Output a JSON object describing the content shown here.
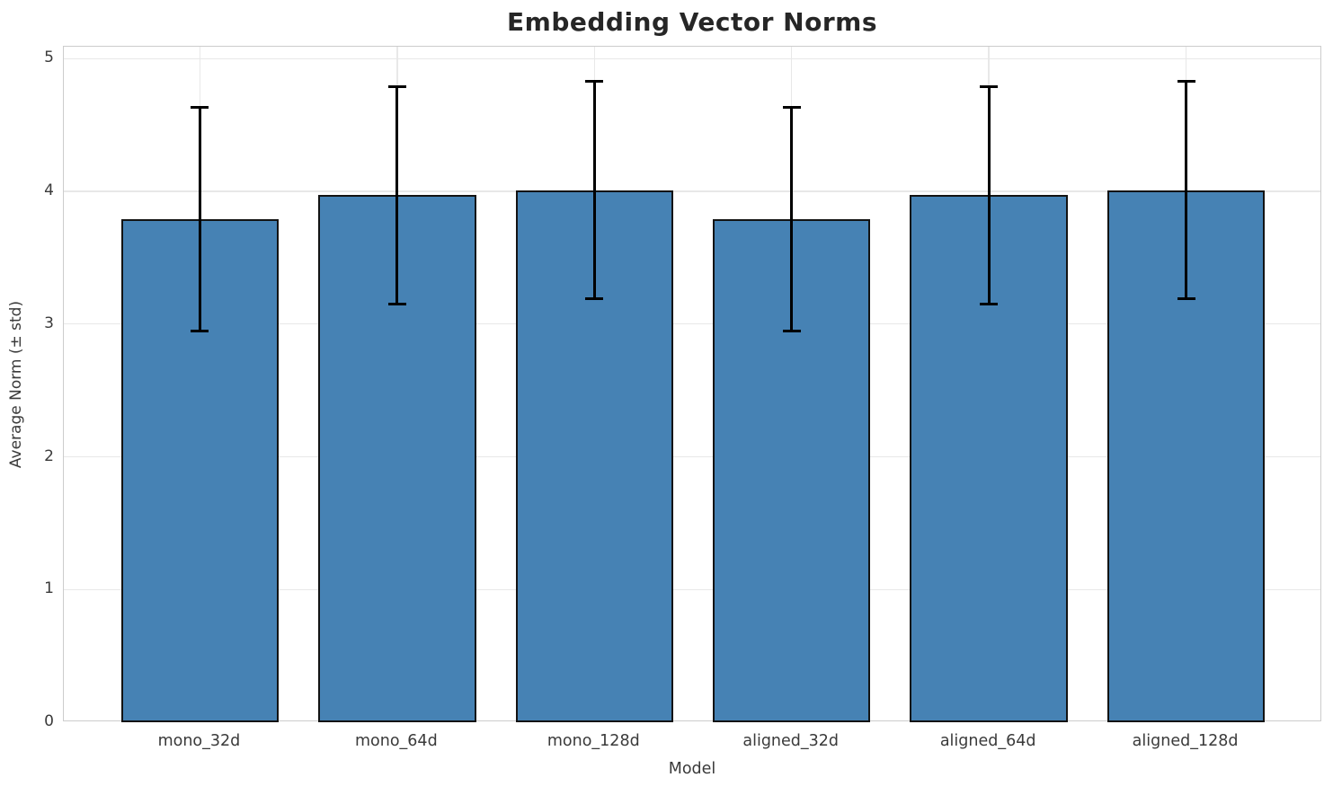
{
  "chart_data": {
    "type": "bar",
    "title": "Embedding Vector Norms",
    "xlabel": "Model",
    "ylabel": "Average Norm (± std)",
    "categories": [
      "mono_32d",
      "mono_64d",
      "mono_128d",
      "aligned_32d",
      "aligned_64d",
      "aligned_128d"
    ],
    "series": [
      {
        "name": "Average Norm",
        "values": [
          3.79,
          3.97,
          4.01,
          3.79,
          3.97,
          4.01
        ],
        "errors": [
          0.84,
          0.82,
          0.82,
          0.84,
          0.82,
          0.82
        ]
      }
    ],
    "ylim": [
      0,
      5
    ],
    "yticks": [
      0,
      1,
      2,
      3,
      4,
      5
    ],
    "grid": true,
    "legend": "none",
    "colors": {
      "bar_fill": "#4682b4",
      "bar_edge": "#131313",
      "error_bar": "#000000",
      "gridline": "#e8e8e8",
      "spine": "#cccccc",
      "title_text": "#262626",
      "tick_text": "#3a3a3a"
    }
  }
}
